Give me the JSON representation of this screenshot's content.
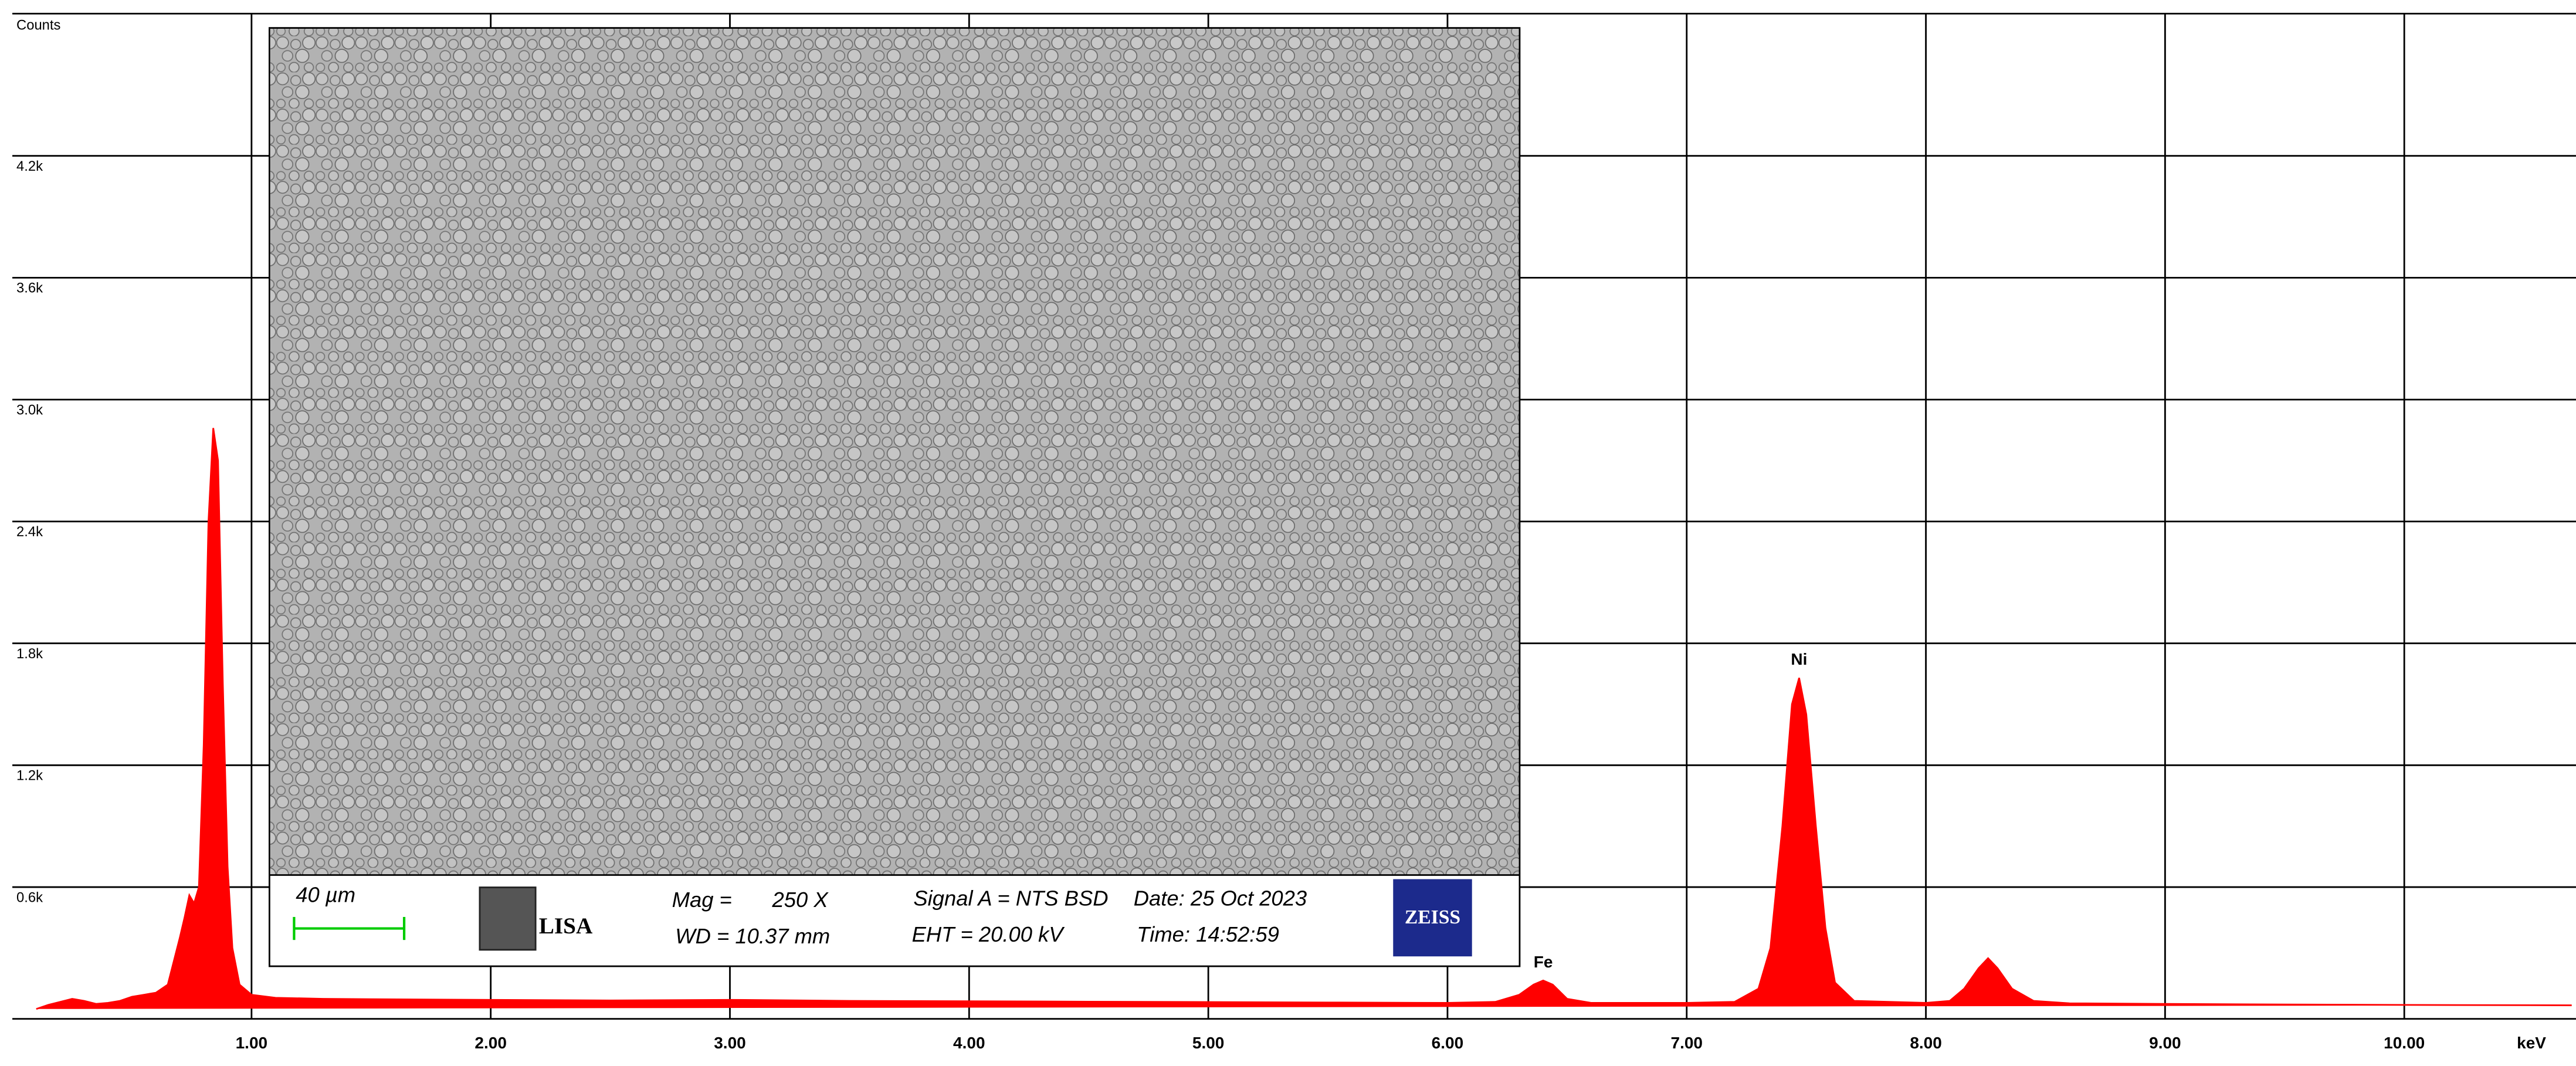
{
  "chart_data": {
    "type": "area",
    "y_label": "Counts",
    "x_label": "keV",
    "x": [
      0.1,
      0.15,
      0.2,
      0.25,
      0.3,
      0.35,
      0.4,
      0.45,
      0.5,
      0.55,
      0.6,
      0.65,
      0.7,
      0.72,
      0.74,
      0.76,
      0.78,
      0.8,
      0.82,
      0.84,
      0.86,
      0.88,
      0.9,
      0.92,
      0.95,
      1.0,
      1.1,
      1.3,
      1.5,
      2.0,
      2.5,
      3.0,
      3.5,
      4.0,
      4.5,
      5.0,
      5.5,
      6.0,
      6.2,
      6.3,
      6.36,
      6.4,
      6.44,
      6.5,
      6.6,
      7.0,
      7.2,
      7.3,
      7.35,
      7.4,
      7.44,
      7.47,
      7.5,
      7.54,
      7.58,
      7.62,
      7.7,
      8.0,
      8.1,
      8.16,
      8.22,
      8.26,
      8.3,
      8.36,
      8.45,
      8.6,
      9.0,
      9.5,
      10.0,
      10.7
    ],
    "series": [
      {
        "name": "Counts",
        "color": "#ff0000",
        "values": [
          0,
          20,
          35,
          50,
          40,
          25,
          30,
          40,
          60,
          70,
          80,
          120,
          350,
          450,
          560,
          520,
          600,
          1300,
          2400,
          2860,
          2700,
          1600,
          700,
          300,
          120,
          70,
          55,
          50,
          48,
          45,
          42,
          45,
          40,
          38,
          36,
          34,
          32,
          30,
          35,
          70,
          120,
          140,
          120,
          50,
          30,
          30,
          35,
          100,
          300,
          900,
          1500,
          1630,
          1450,
          900,
          400,
          130,
          40,
          30,
          40,
          100,
          200,
          250,
          200,
          100,
          40,
          28,
          25,
          22,
          20,
          18
        ]
      }
    ],
    "xlim": [
      0,
      10.7
    ],
    "ylim": [
      0,
      4900
    ],
    "xticks": [
      {
        "value": 1,
        "label": "1.00"
      },
      {
        "value": 2,
        "label": "2.00"
      },
      {
        "value": 3,
        "label": "3.00"
      },
      {
        "value": 4,
        "label": "4.00"
      },
      {
        "value": 5,
        "label": "5.00"
      },
      {
        "value": 6,
        "label": "6.00"
      },
      {
        "value": 7,
        "label": "7.00"
      },
      {
        "value": 8,
        "label": "8.00"
      },
      {
        "value": 9,
        "label": "9.00"
      },
      {
        "value": 10,
        "label": "10.00"
      }
    ],
    "yticks": [
      {
        "value": 600,
        "label": "0.6k"
      },
      {
        "value": 1200,
        "label": "1.2k"
      },
      {
        "value": 1800,
        "label": "1.8k"
      },
      {
        "value": 2400,
        "label": "2.4k"
      },
      {
        "value": 3000,
        "label": "3.0k"
      },
      {
        "value": 3600,
        "label": "3.6k"
      },
      {
        "value": 4200,
        "label": "4.2k"
      }
    ],
    "grid": true,
    "annotations": [
      {
        "text": "Fe",
        "x": 6.4
      },
      {
        "text": "Ni",
        "x": 7.47
      }
    ],
    "inset": {
      "scale_bar": "40 µm",
      "logo_lisa": "LISA",
      "mag_label": "Mag =",
      "mag": "250 X",
      "wd": "WD = 10.37 mm",
      "signal": "Signal A = NTS BSD",
      "date": "Date: 25 Oct 2023",
      "eht": "EHT = 20.00 kV",
      "time": "Time: 14:52:59",
      "logo": "ZEISS"
    }
  }
}
